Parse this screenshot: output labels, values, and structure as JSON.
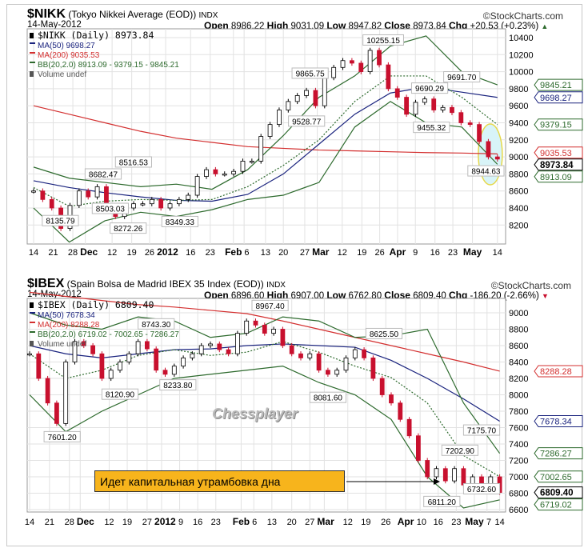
{
  "charts": [
    {
      "symbol": "$NIKK",
      "name": "(Tokyo Nikkei Average (EOD))",
      "exchange": "INDX",
      "brand": "©StockCharts.com",
      "date": "14-May-2012",
      "ohlc": {
        "open_l": "Open",
        "open": "8986.22",
        "high_l": "High",
        "high": "9031.09",
        "low_l": "Low",
        "low": "8947.82",
        "close_l": "Close",
        "close": "8973.84",
        "chg_l": "Chg",
        "chg": "+20.53 (+0.23%)",
        "dir": "up"
      },
      "legend": [
        "$NIKK (Daily) 8973.84",
        "MA(50) 9698.27",
        "MA(200) 9035.53",
        "BB(20,2.0) 8913.09 - 9379.15 - 9845.21",
        "Volume undef"
      ],
      "chart_data": {
        "type": "candlestick",
        "x_unit": "weeks since 14-Nov-2011",
        "ylim": [
          8100,
          10450
        ],
        "yticks": [
          8200,
          8400,
          8600,
          8800,
          9000,
          9200,
          9400,
          9600,
          9800,
          10000,
          10200,
          10400
        ],
        "closes": [
          8600,
          8500,
          8400,
          8160,
          8430,
          8600,
          8530,
          8650,
          8400,
          8300,
          8400,
          8450,
          8450,
          8500,
          8400,
          8450,
          8500,
          8550,
          8770,
          8850,
          8800,
          8800,
          8830,
          8950,
          8950,
          9240,
          9380,
          9550,
          9650,
          9720,
          9780,
          9600,
          9930,
          10050,
          10130,
          10100,
          10000,
          10250,
          10080,
          9800,
          9700,
          9500,
          9640,
          9680,
          9550,
          9580,
          9520,
          9400,
          9380,
          9180,
          9000,
          8974
        ],
        "ma50": [
          8720,
          8640,
          8580,
          8530,
          8490,
          8480,
          8560,
          8800,
          9150,
          9500,
          9750,
          9820,
          9760,
          9698
        ],
        "ma200": [
          9600,
          9500,
          9400,
          9300,
          9220,
          9170,
          9120,
          9100,
          9080,
          9070,
          9060,
          9050,
          9045,
          9035
        ],
        "bb_upper": [
          8880,
          8750,
          8700,
          8650,
          8680,
          8620,
          8850,
          9250,
          9700,
          9950,
          10300,
          10420,
          10000,
          9845
        ],
        "bb_mid": [
          8640,
          8420,
          8480,
          8500,
          8490,
          8500,
          8650,
          8900,
          9200,
          9650,
          9950,
          9950,
          9700,
          9379
        ],
        "bb_lower": [
          8400,
          8000,
          8250,
          8350,
          8300,
          8380,
          8500,
          8550,
          8700,
          9350,
          9650,
          9400,
          9350,
          8913
        ],
        "annotations": [
          {
            "t": "8135.79",
            "w": 1.5,
            "v": 8135,
            "p": "below"
          },
          {
            "t": "8682.47",
            "w": 3.9,
            "v": 8682,
            "p": "above"
          },
          {
            "t": "8516.53",
            "w": 5.6,
            "v": 8560,
            "p": "above"
          },
          {
            "t": "8503.03",
            "w": 4.3,
            "v": 8503,
            "p": "below"
          },
          {
            "t": "8272.26",
            "w": 5.3,
            "v": 8272,
            "p": "below"
          },
          {
            "t": "8349.33",
            "w": 8.2,
            "v": 8349,
            "p": "below"
          },
          {
            "t": "9865.75",
            "w": 15.5,
            "v": 9865,
            "p": "above"
          },
          {
            "t": "9528.77",
            "w": 15.3,
            "v": 9528,
            "p": "below"
          },
          {
            "t": "10255.15",
            "w": 19.6,
            "v": 10255,
            "p": "above"
          },
          {
            "t": "9690.29",
            "w": 22.2,
            "v": 9690,
            "p": "above"
          },
          {
            "t": "9455.32",
            "w": 22.3,
            "v": 9455,
            "p": "below"
          },
          {
            "t": "9691.70",
            "w": 24.0,
            "v": 9691,
            "p": "above"
          },
          {
            "t": "8944.63",
            "w": 25.6,
            "v": 8944,
            "p": "below"
          }
        ],
        "tags": [
          {
            "t": "9845.21",
            "v": 9845,
            "c": "#2d6a2d"
          },
          {
            "t": "9698.27",
            "v": 9698,
            "c": "#1a237e"
          },
          {
            "t": "9379.15",
            "v": 9379,
            "c": "#2d6a2d"
          },
          {
            "t": "9035.53",
            "v": 9050,
            "c": "#d32f2f"
          },
          {
            "t": "8913.09",
            "v": 8900,
            "c": "#2d6a2d"
          },
          {
            "t": "8973.84",
            "v": 8975,
            "c": "#000",
            "bold": true
          }
        ],
        "xticks": [
          {
            "t": "14",
            "w": 0
          },
          {
            "t": "21",
            "w": 1.1
          },
          {
            "t": "28",
            "w": 2.2
          },
          {
            "t": "Dec",
            "w": 2.9,
            "b": true
          },
          {
            "t": "12",
            "w": 4.4
          },
          {
            "t": "19",
            "w": 5.5
          },
          {
            "t": "26",
            "w": 6.5
          },
          {
            "t": "2012",
            "w": 7.4,
            "b": true
          },
          {
            "t": "16",
            "w": 8.8
          },
          {
            "t": "23",
            "w": 9.9
          },
          {
            "t": "Feb",
            "w": 11.2,
            "b": true
          },
          {
            "t": "6",
            "w": 11.8
          },
          {
            "t": "13",
            "w": 13.0
          },
          {
            "t": "20",
            "w": 14.0
          },
          {
            "t": "27",
            "w": 15.2
          },
          {
            "t": "Mar",
            "w": 15.9,
            "b": true
          },
          {
            "t": "12",
            "w": 17.3
          },
          {
            "t": "19",
            "w": 18.4
          },
          {
            "t": "26",
            "w": 19.4
          },
          {
            "t": "Apr",
            "w": 20.4,
            "b": true
          },
          {
            "t": "9",
            "w": 21.4
          },
          {
            "t": "16",
            "w": 22.5
          },
          {
            "t": "23",
            "w": 23.5
          },
          {
            "t": "May",
            "w": 24.6,
            "b": true
          },
          {
            "t": "14",
            "w": 26
          }
        ]
      }
    },
    {
      "symbol": "$IBEX",
      "name": "(Spain Bolsa de Madrid IBEX 35 Index (EOD))",
      "exchange": "INDX",
      "brand": "©StockCharts.com",
      "date": "14-May-2012",
      "ohlc": {
        "open_l": "Open",
        "open": "6896.60",
        "high_l": "High",
        "high": "6907.00",
        "low_l": "Low",
        "low": "6762.80",
        "close_l": "Close",
        "close": "6809.40",
        "chg_l": "Chg",
        "chg": "-186.20 (-2.66%)",
        "dir": "down"
      },
      "legend": [
        "$IBEX (Daily) 6809.40",
        "MA(50) 7678.34",
        "MA(200) 8288.28",
        "BB(20,2.0) 6719.02 - 7002.65 - 7286.27",
        "Volume undef"
      ],
      "chart_data": {
        "type": "candlestick",
        "x_unit": "weeks since 14-Nov-2011",
        "ylim": [
          6550,
          9180
        ],
        "yticks": [
          6600,
          6800,
          7000,
          7200,
          7400,
          7600,
          7800,
          8000,
          8200,
          8400,
          8600,
          8800,
          9000
        ],
        "closes": [
          8500,
          8200,
          7900,
          7650,
          8400,
          8650,
          8600,
          8500,
          8200,
          8300,
          8400,
          8500,
          8650,
          8560,
          8300,
          8250,
          8350,
          8450,
          8500,
          8600,
          8620,
          8550,
          8500,
          8750,
          8900,
          8850,
          8750,
          8800,
          8600,
          8500,
          8450,
          8500,
          8300,
          8250,
          8300,
          8450,
          8550,
          8450,
          8200,
          8000,
          7900,
          7700,
          7500,
          7200,
          7000,
          7100,
          6950,
          7100,
          6900,
          7000,
          6900,
          7000,
          6809
        ],
        "ma50": [
          8600,
          8500,
          8450,
          8500,
          8550,
          8560,
          8600,
          8620,
          8600,
          8580,
          8420,
          8200,
          7950,
          7678
        ],
        "ma200": [
          9250,
          9200,
          9150,
          9100,
          9070,
          9030,
          8990,
          8900,
          8800,
          8700,
          8600,
          8500,
          8400,
          8288
        ],
        "bb_upper": [
          9000,
          8850,
          8800,
          8950,
          8900,
          8700,
          8750,
          8950,
          8900,
          8700,
          8720,
          8800,
          7900,
          7286
        ],
        "bb_mid": [
          8500,
          8200,
          8300,
          8480,
          8550,
          8480,
          8520,
          8650,
          8520,
          8350,
          8210,
          7900,
          7260,
          7002
        ],
        "bb_lower": [
          8000,
          7550,
          7800,
          8000,
          8200,
          8250,
          8300,
          8350,
          8150,
          8000,
          7700,
          7000,
          6620,
          6719
        ],
        "annotations": [
          {
            "t": "7601.20",
            "w": 1.8,
            "v": 7601,
            "p": "below"
          },
          {
            "t": "8120.90",
            "w": 5.0,
            "v": 8120,
            "p": "below"
          },
          {
            "t": "8743.30",
            "w": 7.0,
            "v": 8743,
            "p": "above"
          },
          {
            "t": "8233.80",
            "w": 8.2,
            "v": 8233,
            "p": "below"
          },
          {
            "t": "8967.40",
            "w": 13.3,
            "v": 8967,
            "p": "above"
          },
          {
            "t": "8625.50",
            "w": 19.6,
            "v": 8625,
            "p": "above"
          },
          {
            "t": "8081.60",
            "w": 16.5,
            "v": 8081,
            "p": "below"
          },
          {
            "t": "7202.90",
            "w": 23.8,
            "v": 7202,
            "p": "above"
          },
          {
            "t": "7175.70",
            "w": 25.0,
            "v": 7175,
            "p": "above"
          },
          {
            "t": "6811.20",
            "w": 22.8,
            "v": 6811,
            "p": "below"
          },
          {
            "t": "6732.60",
            "w": 25.0,
            "v": 6732,
            "p": "below"
          }
        ],
        "tags": [
          {
            "t": "8288.28",
            "v": 8288,
            "c": "#d32f2f"
          },
          {
            "t": "7678.34",
            "v": 7678,
            "c": "#1a237e"
          },
          {
            "t": "7286.27",
            "v": 7286,
            "c": "#2d6a2d"
          },
          {
            "t": "7002.65",
            "v": 7002,
            "c": "#2d6a2d"
          },
          {
            "t": "6809.40",
            "v": 6809,
            "c": "#000",
            "bold": true
          },
          {
            "t": "6719.02",
            "v": 6719,
            "c": "#2d6a2d"
          }
        ],
        "xticks": [
          {
            "t": "14",
            "w": 0
          },
          {
            "t": "21",
            "w": 1.1
          },
          {
            "t": "28",
            "w": 2.2
          },
          {
            "t": "Dec",
            "w": 2.8,
            "b": true
          },
          {
            "t": "12",
            "w": 4.4
          },
          {
            "t": "19",
            "w": 5.4
          },
          {
            "t": "27",
            "w": 6.5
          },
          {
            "t": "2012",
            "w": 7.3,
            "b": true
          },
          {
            "t": "9",
            "w": 8.3
          },
          {
            "t": "16",
            "w": 9.3
          },
          {
            "t": "23",
            "w": 10.3
          },
          {
            "t": "Feb",
            "w": 11.7,
            "b": true
          },
          {
            "t": "6",
            "w": 12.4
          },
          {
            "t": "13",
            "w": 13.4
          },
          {
            "t": "20",
            "w": 14.5
          },
          {
            "t": "27",
            "w": 15.5
          },
          {
            "t": "Mar",
            "w": 16.3,
            "b": true
          },
          {
            "t": "12",
            "w": 17.6
          },
          {
            "t": "19",
            "w": 18.6
          },
          {
            "t": "26",
            "w": 19.7
          },
          {
            "t": "Apr",
            "w": 20.8,
            "b": true
          },
          {
            "t": "10",
            "w": 21.6
          },
          {
            "t": "16",
            "w": 22.6
          },
          {
            "t": "23",
            "w": 23.6
          },
          {
            "t": "May",
            "w": 24.6,
            "b": true
          },
          {
            "t": "7",
            "w": 25.3
          },
          {
            "t": "14",
            "w": 26
          }
        ]
      }
    }
  ],
  "note": "Идет капитальная утрамбовка дна",
  "watermark": "Chessplayer",
  "colors": {
    "up": "#ffffff",
    "down": "#c8102e",
    "ma50": "#1a237e",
    "ma200": "#d32f2f",
    "bb": "#2d6a2d",
    "highlight": "#d8f4f8"
  }
}
